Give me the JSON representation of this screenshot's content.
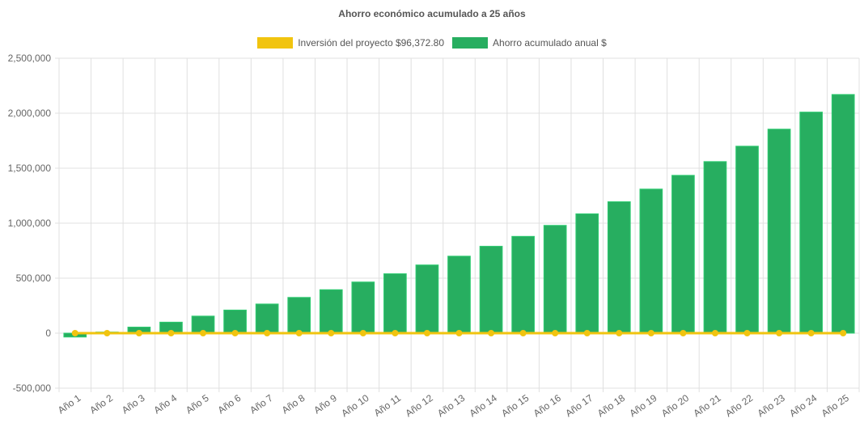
{
  "chart_data": {
    "type": "bar",
    "title": "Ahorro económico acumulado a 25 años",
    "categories": [
      "Año 1",
      "Año 2",
      "Año 3",
      "Año 4",
      "Año 5",
      "Año 6",
      "Año 7",
      "Año 8",
      "Año 9",
      "Año 10",
      "Año 11",
      "Año 12",
      "Año 13",
      "Año 14",
      "Año 15",
      "Año 16",
      "Año 17",
      "Año 18",
      "Año 19",
      "Año 20",
      "Año 21",
      "Año 22",
      "Año 23",
      "Año 24",
      "Año 25"
    ],
    "series": [
      {
        "name": "Inversión del proyecto $96,372.80",
        "type": "line",
        "color": "#f1c40f",
        "values": [
          0,
          0,
          0,
          0,
          0,
          0,
          0,
          0,
          0,
          0,
          0,
          0,
          0,
          0,
          0,
          0,
          0,
          0,
          0,
          0,
          0,
          0,
          0,
          0,
          0
        ]
      },
      {
        "name": "Ahorro acumulado anual $",
        "type": "bar",
        "color": "#27ae60",
        "values": [
          -35000,
          10000,
          55000,
          100000,
          155000,
          210000,
          265000,
          325000,
          395000,
          465000,
          540000,
          620000,
          700000,
          790000,
          880000,
          980000,
          1085000,
          1195000,
          1310000,
          1435000,
          1560000,
          1700000,
          1855000,
          2010000,
          2170000
        ]
      }
    ],
    "ylim": [
      -500000,
      2500000
    ],
    "yticks": [
      "2,500,000",
      "2,000,000",
      "1,500,000",
      "1,000,000",
      "500,000",
      "0",
      "-500,000"
    ],
    "grid": true,
    "legend": "top"
  }
}
